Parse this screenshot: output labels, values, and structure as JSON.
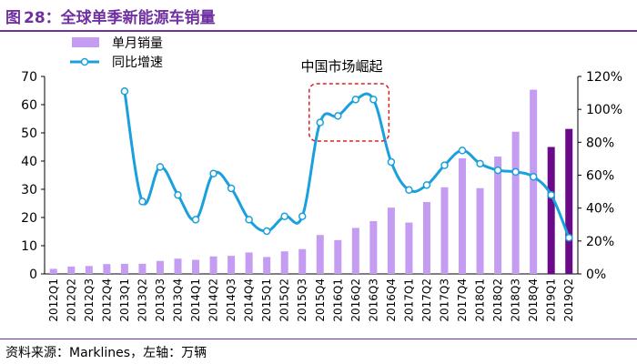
{
  "figure": {
    "label": "图",
    "number": "28",
    "title": "全球单季新能源车销量"
  },
  "source_note": "资料来源：Marklines，左轴：万辆",
  "colors": {
    "bar": "#c49cf2",
    "bar_highlight": "#6a0a8a",
    "line": "#1aa0dc",
    "marker_fill": "#ffffff",
    "annotation": "#e02020",
    "title": "#7030a0"
  },
  "chart_data": {
    "type": "bar",
    "title": "全球单季新能源车销量",
    "categories": [
      "2012Q1",
      "2012Q2",
      "2012Q3",
      "2012Q4",
      "2013Q1",
      "2013Q2",
      "2013Q3",
      "2013Q4",
      "2014Q1",
      "2014Q2",
      "2014Q3",
      "2014Q4",
      "2015Q1",
      "2015Q2",
      "2015Q3",
      "2015Q4",
      "2016Q1",
      "2016Q2",
      "2016Q3",
      "2016Q4",
      "2017Q1",
      "2017Q2",
      "2017Q3",
      "2017Q4",
      "2018Q1",
      "2018Q2",
      "2018Q3",
      "2018Q4",
      "2019Q1",
      "2019Q2"
    ],
    "series": [
      {
        "name": "单月销量",
        "type": "bar",
        "axis": "left",
        "unit": "万辆",
        "values": [
          1.8,
          2.6,
          2.8,
          3.5,
          3.6,
          3.6,
          4.6,
          5.4,
          5.0,
          6.2,
          6.4,
          7.6,
          6.0,
          8.0,
          8.8,
          13.8,
          12.0,
          16.3,
          18.7,
          23.5,
          18.2,
          25.5,
          30.7,
          41.0,
          30.4,
          41.6,
          50.4,
          65.3,
          45.0,
          51.4
        ],
        "highlight_from_index": 28
      },
      {
        "name": "同比增速",
        "type": "line",
        "axis": "right",
        "unit": "%",
        "values": [
          null,
          null,
          null,
          null,
          111,
          44,
          65,
          48,
          33,
          61,
          52,
          33,
          26,
          35,
          35,
          92,
          96,
          106,
          106,
          68,
          51,
          54,
          66,
          75,
          67,
          63,
          62,
          59,
          48,
          22
        ]
      }
    ],
    "y_left": {
      "min": 0,
      "max": 70,
      "ticks": [
        0,
        10,
        20,
        30,
        40,
        50,
        60,
        70
      ]
    },
    "y_right": {
      "min": 0,
      "max": 120,
      "ticks": [
        "0%",
        "20%",
        "40%",
        "60%",
        "80%",
        "100%",
        "120%"
      ]
    },
    "xlabel": "",
    "ylabel": "",
    "grid": false,
    "legend_position": "top-left",
    "annotation": {
      "text": "中国市场崛起",
      "start_category": "2015Q4",
      "end_category": "2016Q3"
    }
  }
}
